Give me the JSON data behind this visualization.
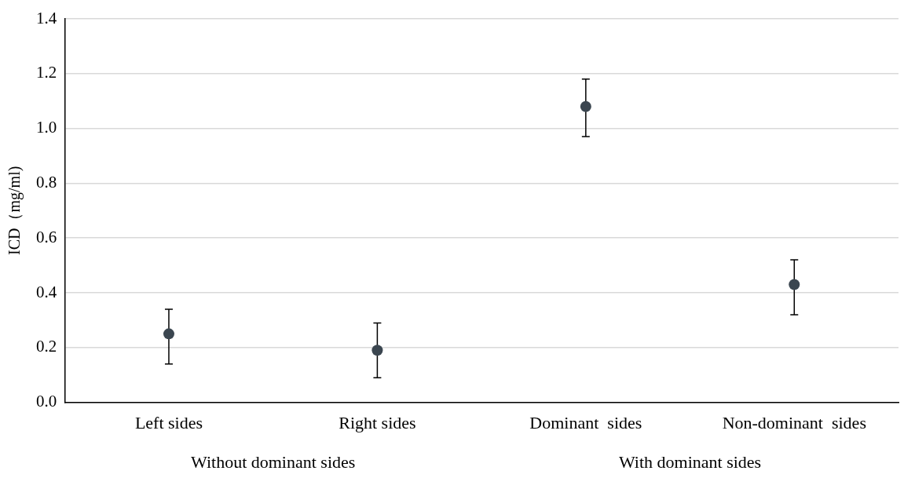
{
  "chart_data": {
    "type": "scatter",
    "ylabel": "ICD（mg/ml)",
    "categories": [
      "Left sides",
      "Right sides",
      "Dominant  sides",
      "Non-dominant  sides"
    ],
    "values": [
      0.25,
      0.19,
      1.08,
      0.43
    ],
    "errors": [
      [
        0.14,
        0.34
      ],
      [
        0.09,
        0.29
      ],
      [
        0.97,
        1.18
      ],
      [
        0.32,
        0.52
      ]
    ],
    "color": "#3b4650",
    "marker": "circle",
    "grid": "y",
    "legend": false,
    "ylim": [
      0,
      1.4
    ],
    "yticks": [
      {
        "value": 0,
        "label": "0.0"
      },
      {
        "value": 0.2,
        "label": "0.2"
      },
      {
        "value": 0.4,
        "label": "0.4"
      },
      {
        "value": 0.6,
        "label": "0.6"
      },
      {
        "value": 0.8,
        "label": "0.8"
      },
      {
        "value": 1,
        "label": "1.0"
      },
      {
        "value": 1.2,
        "label": "1.2"
      },
      {
        "value": 1.4,
        "label": "1.4"
      }
    ],
    "annotations": [
      "Without dominant sides",
      "With dominant sides"
    ]
  }
}
